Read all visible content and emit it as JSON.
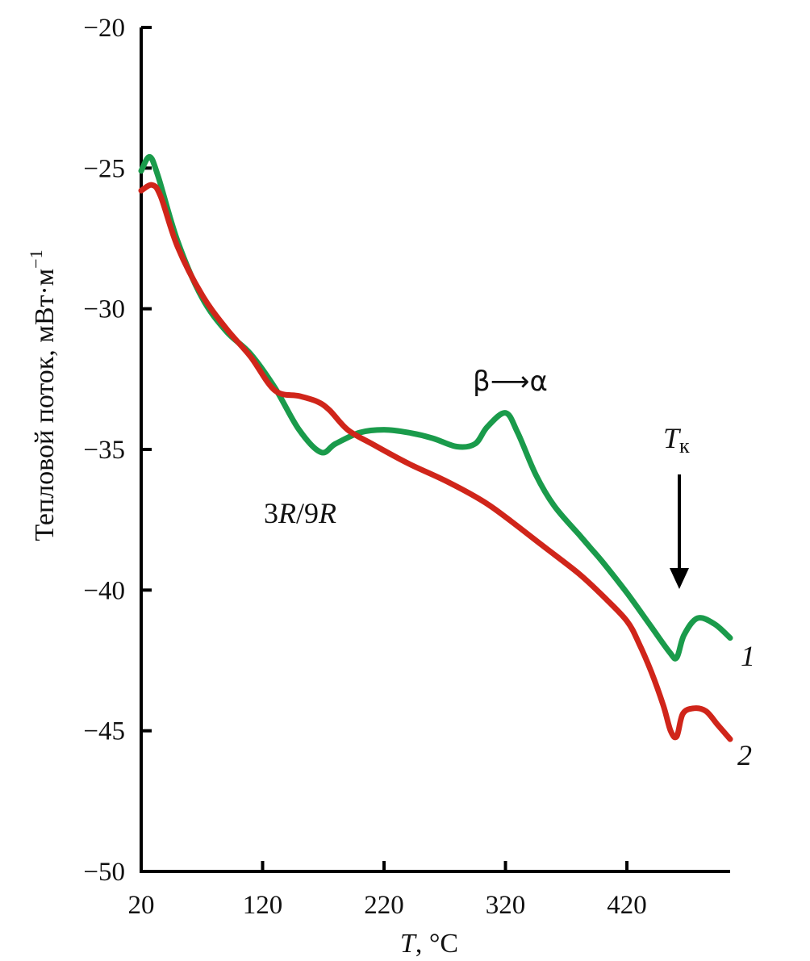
{
  "chart_data": {
    "type": "line",
    "xlabel_var": "T",
    "xlabel_unit": ", °C",
    "ylabel_main": "Тепловой поток, мВт·м",
    "ylabel_exp": "−1",
    "xlim": [
      20,
      505
    ],
    "ylim": [
      -50,
      -20
    ],
    "xticks": [
      20,
      120,
      220,
      320,
      420
    ],
    "xtick_labels": [
      "20",
      "120",
      "220",
      "320",
      "420"
    ],
    "yticks": [
      -50,
      -45,
      -40,
      -35,
      -30,
      -25,
      -20
    ],
    "ytick_labels": [
      "−50",
      "−45",
      "−40",
      "−35",
      "−30",
      "−25",
      "−20"
    ],
    "series": [
      {
        "name": "1",
        "color": "#1a9b4b",
        "x": [
          20,
          27,
          34,
          50,
          70,
          90,
          110,
          130,
          150,
          168,
          180,
          200,
          220,
          240,
          260,
          280,
          295,
          305,
          320,
          330,
          345,
          360,
          380,
          390,
          400,
          420,
          440,
          455,
          461,
          467,
          478,
          492,
          505
        ],
        "y": [
          -25.1,
          -24.6,
          -25.3,
          -27.6,
          -29.6,
          -30.8,
          -31.6,
          -32.8,
          -34.3,
          -35.1,
          -34.8,
          -34.4,
          -34.3,
          -34.4,
          -34.6,
          -34.9,
          -34.8,
          -34.2,
          -33.7,
          -34.4,
          -35.9,
          -37.0,
          -38.0,
          -38.5,
          -39.0,
          -40.1,
          -41.3,
          -42.2,
          -42.4,
          -41.6,
          -41.0,
          -41.2,
          -41.7
        ]
      },
      {
        "name": "2",
        "color": "#d0251a",
        "x": [
          20,
          29,
          36,
          50,
          70,
          90,
          110,
          130,
          150,
          165,
          175,
          190,
          210,
          240,
          270,
          300,
          320,
          350,
          380,
          400,
          420,
          430,
          440,
          450,
          456,
          461,
          466,
          475,
          485,
          495,
          505
        ],
        "y": [
          -25.8,
          -25.6,
          -26.0,
          -27.8,
          -29.5,
          -30.7,
          -31.7,
          -32.9,
          -33.1,
          -33.3,
          -33.6,
          -34.3,
          -34.8,
          -35.5,
          -36.1,
          -36.8,
          -37.4,
          -38.4,
          -39.4,
          -40.2,
          -41.1,
          -41.9,
          -42.9,
          -44.1,
          -45.0,
          -45.2,
          -44.4,
          -44.2,
          -44.3,
          -44.8,
          -45.3
        ]
      }
    ],
    "annotations": [
      {
        "label_a": "3",
        "label_b": "R",
        "label_c": "/9",
        "label_d": "R"
      },
      {
        "transition": "β⟶α"
      },
      {
        "tk_var": "T",
        "tk_sub": "к",
        "arrow_x": 461
      },
      {
        "curve_label": "1"
      },
      {
        "curve_label": "2"
      }
    ]
  }
}
